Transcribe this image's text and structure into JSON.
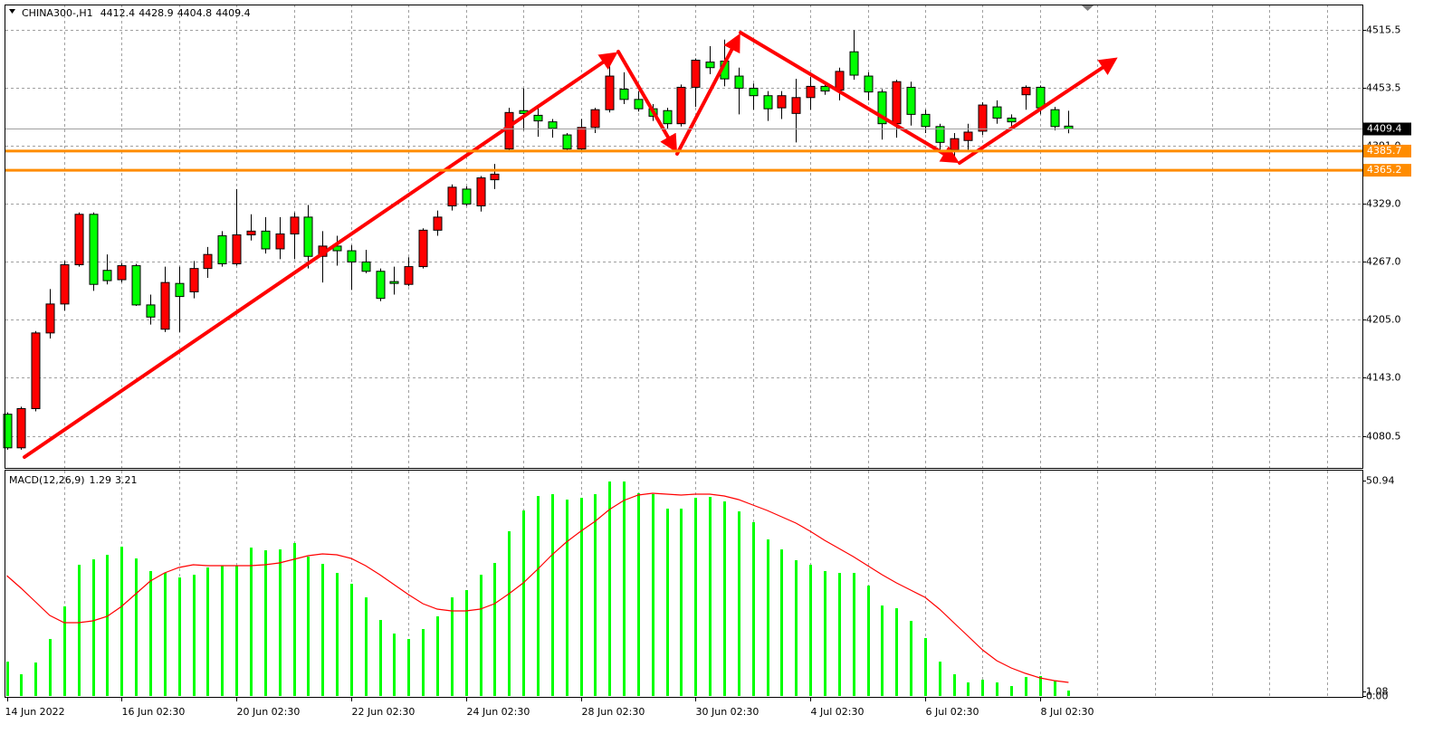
{
  "chart_data": [
    {
      "type": "candlestick",
      "title": "CHINA300-,H1",
      "last_bar": {
        "open": 4412.4,
        "high": 4428.9,
        "low": 4404.8,
        "close": 4409.4
      },
      "categories": [
        "14 Jun 2022",
        null,
        null,
        null,
        null,
        null,
        null,
        null,
        "16 Jun 02:30",
        null,
        null,
        null,
        null,
        null,
        null,
        null,
        "20 Jun 02:30",
        null,
        null,
        null,
        null,
        null,
        null,
        null,
        "22 Jun 02:30",
        null,
        null,
        null,
        null,
        null,
        null,
        null,
        "24 Jun 02:30",
        null,
        null,
        null,
        null,
        null,
        null,
        null,
        "28 Jun 02:30",
        null,
        null,
        null,
        null,
        null,
        null,
        null,
        "30 Jun 02:30",
        null,
        null,
        null,
        null,
        null,
        null,
        null,
        "4 Jul 02:30",
        null,
        null,
        null,
        null,
        null,
        null,
        null,
        "6 Jul 02:30",
        null,
        null,
        null,
        null,
        null,
        null,
        null,
        "8 Jul 02:30",
        null,
        null
      ],
      "open": [
        4104,
        4068,
        4110,
        4191,
        4222,
        4264,
        4318,
        4258,
        4248,
        4263,
        4221,
        4195,
        4244,
        4235,
        4260,
        4295,
        4265,
        4296,
        4300,
        4281,
        4297,
        4315,
        4273,
        4284,
        4279,
        4267,
        4257,
        4246,
        4243,
        4262,
        4301,
        4327,
        4345,
        4327,
        4355,
        4388,
        4429,
        4424,
        4417,
        4403,
        4388,
        4411,
        4430,
        4452,
        4441,
        4431,
        4429,
        4415,
        4454,
        4481,
        4482,
        4466,
        4453,
        4445,
        4432,
        4426,
        4443,
        4455,
        4451,
        4492,
        4466,
        4449,
        4415,
        4454,
        4425,
        4412,
        4387,
        4397,
        4407,
        4433,
        4421,
        4446,
        4454,
        4430,
        4412.4
      ],
      "high": [
        4106,
        4112,
        4193,
        4238,
        4268,
        4320,
        4320,
        4275,
        4266,
        4265,
        4232,
        4262,
        4262,
        4268,
        4283,
        4300,
        4345,
        4318,
        4315,
        4315,
        4320,
        4328,
        4300,
        4295,
        4285,
        4280,
        4260,
        4262,
        4272,
        4303,
        4322,
        4350,
        4348,
        4359,
        4372,
        4432,
        4453,
        4432,
        4420,
        4405,
        4420,
        4432,
        4478,
        4470,
        4450,
        4436,
        4432,
        4457,
        4485,
        4498,
        4505,
        4475,
        4458,
        4450,
        4450,
        4463,
        4465,
        4460,
        4475,
        4515,
        4470,
        4452,
        4462,
        4460,
        4430,
        4415,
        4405,
        4415,
        4438,
        4440,
        4425,
        4456,
        4456,
        4433,
        4428.9
      ],
      "low": [
        4066,
        4066,
        4107,
        4185,
        4215,
        4262,
        4236,
        4243,
        4245,
        4220,
        4200,
        4192,
        4192,
        4228,
        4250,
        4262,
        4263,
        4290,
        4276,
        4270,
        4270,
        4260,
        4245,
        4263,
        4237,
        4255,
        4225,
        4232,
        4241,
        4260,
        4295,
        4322,
        4327,
        4321,
        4345,
        4387,
        4408,
        4401,
        4400,
        4386,
        4386,
        4405,
        4427,
        4436,
        4428,
        4418,
        4410,
        4412,
        4433,
        4468,
        4455,
        4425,
        4430,
        4418,
        4420,
        4395,
        4430,
        4446,
        4440,
        4462,
        4440,
        4398,
        4400,
        4413,
        4405,
        4385,
        4380,
        4385,
        4403,
        4415,
        4410,
        4430,
        4425,
        4408,
        4404.8
      ],
      "close": [
        4068,
        4110,
        4191,
        4222,
        4264,
        4318,
        4243,
        4247,
        4263,
        4221,
        4208,
        4245,
        4230,
        4260,
        4275,
        4265,
        4296,
        4300,
        4281,
        4297,
        4315,
        4273,
        4284,
        4279,
        4267,
        4257,
        4228,
        4244,
        4262,
        4301,
        4315,
        4347,
        4329,
        4357,
        4361,
        4427,
        4426,
        4418,
        4410,
        4388,
        4411,
        4430,
        4466,
        4441,
        4431,
        4423,
        4415,
        4454,
        4483,
        4475,
        4463,
        4453,
        4445,
        4431,
        4445,
        4443,
        4455,
        4450,
        4471,
        4467,
        4449,
        4415,
        4460,
        4425,
        4412,
        4395,
        4399,
        4406,
        4435,
        4421,
        4417,
        4454,
        4432,
        4412,
        4409.4
      ],
      "up_color": "#ff0000",
      "down_color": "#00ff00",
      "ylim": [
        4046.5,
        4542.6
      ],
      "yticks": [
        4515.5,
        4453.5,
        {
          "value": 4391,
          "label": "4391.0"
        },
        {
          "value": 4329,
          "label": "4329.0"
        },
        {
          "value": 4267,
          "label": "4267.0"
        },
        {
          "value": 4205,
          "label": "4205.0"
        },
        {
          "value": 4143,
          "label": "4143.0"
        },
        4080.5
      ],
      "grid": true,
      "levels": [
        {
          "value": 4385.7,
          "color": "#ff8c00"
        },
        {
          "value": 4365.2,
          "color": "#ff8c00"
        }
      ]
    },
    {
      "type": "macd",
      "title": "MACD(12,26,9)",
      "current_values": [
        1.29,
        3.21
      ],
      "series": [
        {
          "kind": "bar",
          "color": "#00ff00",
          "values": [
            8.13,
            5.14,
            7.92,
            13.48,
            21.19,
            31.04,
            32.32,
            33.39,
            35.32,
            32.53,
            29.54,
            29.11,
            28.04,
            28.68,
            30.39,
            30.82,
            30.82,
            35.1,
            34.46,
            34.67,
            36.17,
            32.96,
            31.25,
            29.11,
            26.54,
            23.33,
            17.98,
            14.77,
            13.48,
            15.84,
            18.84,
            23.33,
            25.04,
            28.68,
            31.46,
            38.96,
            43.88,
            47.3,
            47.73,
            46.45,
            46.88,
            47.73,
            50.73,
            50.73,
            47.95,
            47.73,
            44.31,
            44.31,
            46.88,
            47.09,
            46.02,
            43.66,
            41.1,
            37.03,
            34.67,
            32.11,
            31.04,
            29.54,
            29.11,
            29.11,
            26.11,
            21.4,
            20.76,
            17.77,
            13.7,
            8.13,
            5.14,
            3.21,
            3.85,
            3.21,
            2.35,
            4.49,
            4.71,
            3.64,
            1.29
          ]
        },
        {
          "kind": "line",
          "color": "#ff0000",
          "values": [
            28.47,
            25.47,
            22.26,
            19.05,
            17.34,
            17.34,
            17.77,
            18.84,
            21.19,
            24.19,
            27.18,
            29.11,
            30.39,
            31.04,
            30.82,
            30.82,
            30.82,
            30.82,
            31.04,
            31.46,
            32.32,
            33.18,
            33.6,
            33.39,
            32.53,
            30.82,
            28.68,
            26.33,
            23.97,
            21.83,
            20.55,
            20.12,
            20.12,
            20.55,
            21.83,
            24.19,
            26.75,
            29.97,
            33.39,
            36.39,
            38.96,
            41.31,
            44.09,
            46.23,
            47.52,
            47.95,
            47.73,
            47.52,
            47.73,
            47.73,
            47.3,
            46.45,
            45.16,
            43.88,
            42.38,
            40.88,
            38.96,
            36.82,
            34.89,
            32.96,
            30.82,
            28.68,
            26.75,
            25.04,
            23.33,
            20.55,
            17.34,
            14.13,
            10.92,
            8.35,
            6.64,
            5.35,
            4.28,
            3.64,
            3.21
          ]
        }
      ],
      "ylim": [
        -0.21,
        53.3
      ],
      "yticks": [
        50.94,
        1.08,
        {
          "value": 0,
          "label": "0.00"
        }
      ]
    }
  ]
}
